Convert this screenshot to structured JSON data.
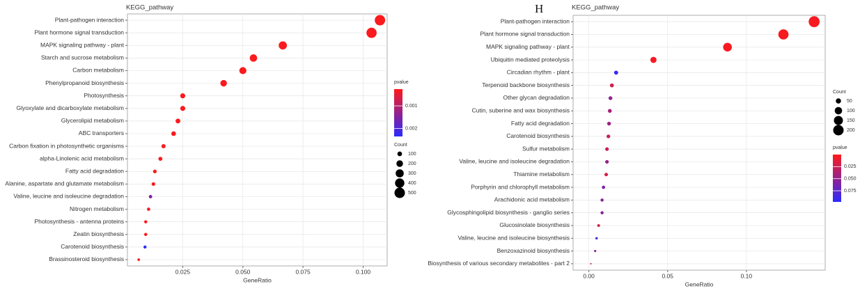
{
  "chart_data": [
    {
      "type": "scatter",
      "title": "KEGG_pathway",
      "x_label": "GeneRatio",
      "categories": [
        "Plant-pathogen interaction",
        "Plant hormone signal transduction",
        "MAPK signaling pathway - plant",
        "Starch and sucrose metabolism",
        "Carbon metabolism",
        "Phenylpropanoid biosynthesis",
        "Photosynthesis",
        "Glyoxylate and dicarboxylate metabolism",
        "Glycerolipid metabolism",
        "ABC transporters",
        "Carbon fixation in photosynthetic organisms",
        "alpha-Linolenic acid metabolism",
        "Fatty acid degradation",
        "Alanine, aspartate and glutamate metabolism",
        "Valine, leucine and isoleucine degradation",
        "Nitrogen metabolism",
        "Photosynthesis - antenna proteins",
        "Zeatin biosynthesis",
        "Carotenoid biosynthesis",
        "Brassinosteroid biosynthesis"
      ],
      "values": [
        0.107,
        0.1035,
        0.0666,
        0.0544,
        0.05,
        0.042,
        0.025,
        0.025,
        0.023,
        0.0212,
        0.017,
        0.0157,
        0.0134,
        0.0128,
        0.0116,
        0.0108,
        0.0096,
        0.0096,
        0.0093,
        0.0067
      ],
      "count": [
        500,
        480,
        310,
        250,
        230,
        195,
        115,
        115,
        105,
        100,
        80,
        73,
        62,
        60,
        54,
        50,
        45,
        45,
        43,
        31
      ],
      "pvalue": [
        0.0003,
        0.0003,
        0.0003,
        0.0003,
        0.0003,
        0.0003,
        0.0003,
        0.0003,
        0.0003,
        0.0003,
        0.0003,
        0.0003,
        0.0003,
        0.0003,
        0.0015,
        0.0003,
        0.0003,
        0.0003,
        0.00235,
        0.0003
      ],
      "xlim": [
        0.002,
        0.11
      ],
      "xticks": [
        0.025,
        {
          "value": 0.05,
          "label": "0.050"
        },
        0.075,
        {
          "value": 0.1,
          "label": "0.100"
        }
      ],
      "grid": true,
      "color_legend": {
        "title": "pvalue",
        "lim": [
          0.00026,
          0.00235
        ],
        "ticks": [
          0.001,
          0.002
        ],
        "colors": [
          "#ff1a1a",
          "#2a2aff"
        ]
      },
      "size_legend": {
        "title": "Count",
        "ticks": [
          100,
          200,
          300,
          400,
          500
        ]
      }
    },
    {
      "type": "scatter",
      "title": "KEGG_pathway",
      "panel_label": "H",
      "x_label": "GeneRatio",
      "categories": [
        "Plant-pathogen interaction",
        "Plant hormone signal transduction",
        "MAPK signaling pathway - plant",
        "Ubiquitin mediated proteolysis",
        "Circadian rhythm - plant",
        "Terpenoid backbone biosynthesis",
        "Other glycan degradation",
        "Cutin, suberine and wax biosynthesis",
        "Fatty acid degradation",
        "Carotenoid biosynthesis",
        "Sulfur metabolism",
        "Valine, leucine and isoleucine degradation",
        "Thiamine metabolism",
        "Porphyrin and chlorophyll metabolism",
        "Arachidonic acid metabolism",
        "Glycosphingolipid biosynthesis - ganglio series",
        "Glucosinolate biosynthesis",
        "Valine, leucine and isoleucine biosynthesis",
        "Benzoxazinoid biosynthesis",
        "Biosynthesis of various secondary metabolites - part 2"
      ],
      "values": [
        0.143,
        0.1235,
        0.088,
        0.041,
        0.0173,
        0.0146,
        0.0137,
        0.0133,
        0.0128,
        0.0124,
        0.0115,
        0.0115,
        0.011,
        0.0093,
        0.0084,
        0.0084,
        0.0062,
        0.0049,
        0.004,
        0.0013
      ],
      "count": [
        220,
        190,
        140,
        70,
        30,
        28,
        27,
        27,
        26,
        25,
        24,
        24,
        23,
        20,
        18,
        18,
        14,
        11,
        9,
        4
      ],
      "pvalue": [
        0.003,
        0.003,
        0.003,
        0.003,
        0.092,
        0.02,
        0.05,
        0.04,
        0.045,
        0.025,
        0.025,
        0.05,
        0.02,
        0.06,
        0.055,
        0.055,
        0.02,
        0.08,
        0.06,
        0.035
      ],
      "xlim": [
        -0.01,
        0.15
      ],
      "xticks": [
        {
          "value": 0,
          "label": "0.00"
        },
        0.05,
        {
          "value": 0.1,
          "label": "0.10"
        }
      ],
      "grid": true,
      "color_legend": {
        "title": "pvalue",
        "lim": [
          0,
          0.098
        ],
        "ticks": [
          0.025,
          {
            "value": 0.05,
            "label": "0.050"
          },
          0.075
        ],
        "colors": [
          "#ff1a1a",
          "#2a2aff"
        ]
      },
      "size_legend": {
        "title": "Count",
        "ticks": [
          50,
          100,
          150,
          200
        ]
      }
    }
  ]
}
